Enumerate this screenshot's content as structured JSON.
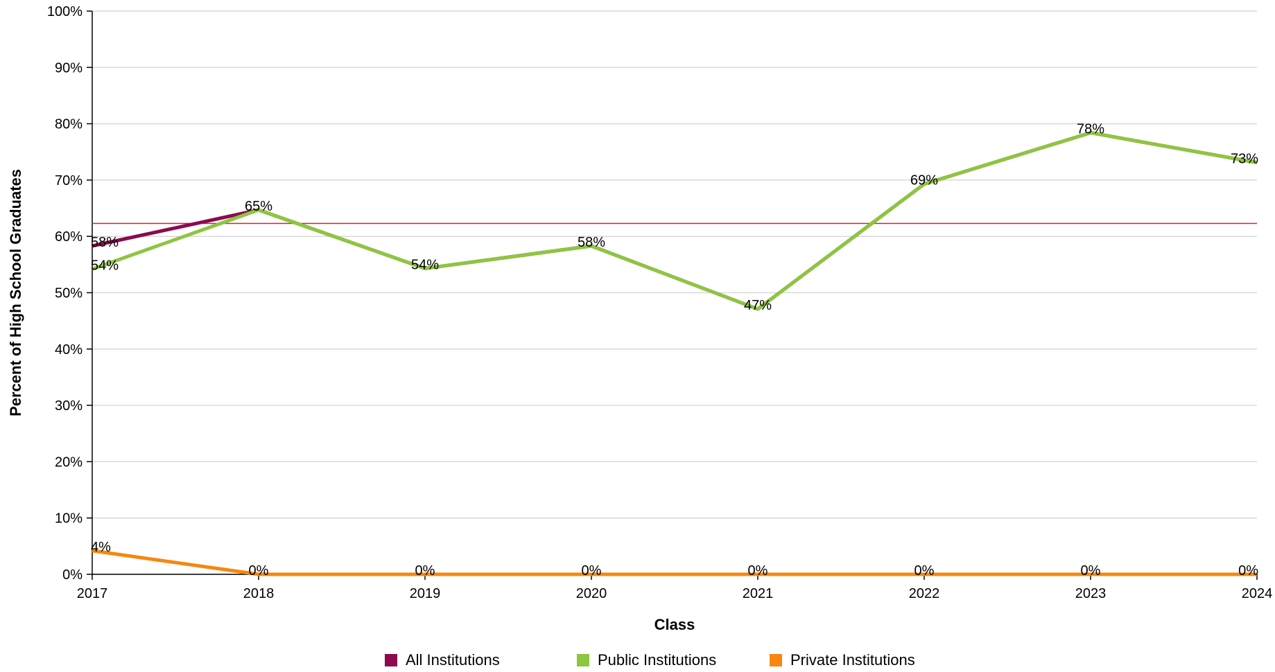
{
  "chart_data": {
    "type": "line",
    "xlabel": "Class",
    "ylabel": "Percent of High School Graduates",
    "x": [
      "2017",
      "2018",
      "2019",
      "2020",
      "2021",
      "2022",
      "2023",
      "2024"
    ],
    "ylim": [
      0,
      100
    ],
    "yticks": [
      "0%",
      "10%",
      "20%",
      "30%",
      "40%",
      "50%",
      "60%",
      "70%",
      "80%",
      "90%",
      "100%"
    ],
    "grid": true,
    "legend_position": "bottom",
    "reference_line": {
      "value": 62.3,
      "color": "#e31a1c"
    },
    "series": [
      {
        "name": "All Institutions",
        "color": "#8b0a50",
        "values": [
          58.3,
          64.7,
          54.3,
          58.3,
          47.1,
          69.3,
          78.4,
          73.1
        ],
        "labels": [
          "58%",
          "",
          "",
          "",
          "",
          "",
          "",
          ""
        ]
      },
      {
        "name": "Public Institutions",
        "color": "#8dc63f",
        "values": [
          54.2,
          64.7,
          54.3,
          58.3,
          47.1,
          69.3,
          78.4,
          73.1
        ],
        "labels": [
          "54%",
          "65%",
          "54%",
          "58%",
          "47%",
          "69%",
          "78%",
          "73%"
        ]
      },
      {
        "name": "Private Institutions",
        "color": "#f7870f",
        "values": [
          4.2,
          0,
          0,
          0,
          0,
          0,
          0,
          0
        ],
        "labels": [
          "4%",
          "0%",
          "0%",
          "0%",
          "0%",
          "0%",
          "0%",
          "0%"
        ]
      }
    ]
  }
}
